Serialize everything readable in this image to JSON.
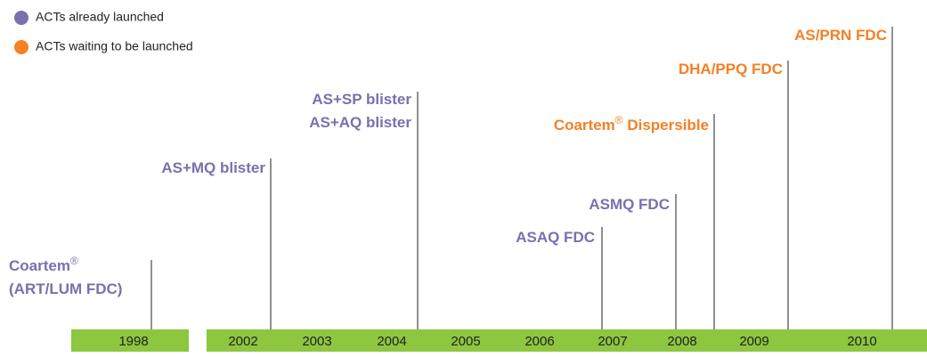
{
  "legend": [
    {
      "label": "ACTs already launched",
      "color": "#7b6fae"
    },
    {
      "label": "ACTs waiting to be launched",
      "color": "#f58025"
    }
  ],
  "timeline_color": "#8dc63f",
  "years": [
    "1998",
    "2002",
    "2003",
    "2004",
    "2005",
    "2006",
    "2007",
    "2008",
    "2009",
    "2010"
  ],
  "events": [
    {
      "color": "#7b6fae",
      "lines": [
        {
          "text": "Coartem",
          "sup": "®"
        },
        {
          "text": "(ART/LUM FDC)"
        }
      ]
    },
    {
      "color": "#7b6fae",
      "lines": [
        {
          "text": "AS+MQ blister"
        }
      ]
    },
    {
      "color": "#7b6fae",
      "lines": [
        {
          "text": "AS+SP blister"
        },
        {
          "text": "AS+AQ blister"
        }
      ]
    },
    {
      "color": "#7b6fae",
      "lines": [
        {
          "text": "ASAQ FDC"
        }
      ]
    },
    {
      "color": "#7b6fae",
      "lines": [
        {
          "text": "ASMQ FDC"
        }
      ]
    },
    {
      "color": "#f58025",
      "lines": [
        {
          "text": "Coartem",
          "sup": "®",
          "after": " Dispersible"
        }
      ]
    },
    {
      "color": "#f58025",
      "lines": [
        {
          "text": "DHA/PPQ FDC"
        }
      ]
    },
    {
      "color": "#f58025",
      "lines": [
        {
          "text": "AS/PRN FDC"
        }
      ]
    }
  ]
}
